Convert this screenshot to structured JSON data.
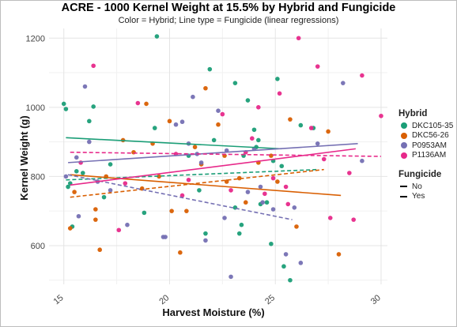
{
  "chart_data": {
    "type": "scatter",
    "title": "ACRE - 1000 Kernel Weight at 15.5% by Hybrid and Fungicide",
    "subtitle": "Color = Hybrid; Line type = Fungicide (linear regressions)",
    "xlabel": "Harvest Moisture (%)",
    "ylabel": "Kernel Weight (g)",
    "xlim": [
      14.3,
      30.3
    ],
    "ylim": [
      488,
      1228
    ],
    "xticks": [
      "15",
      "20",
      "25",
      "30"
    ],
    "yticks": [
      "600",
      "800",
      "1000",
      "1200"
    ],
    "grid": true,
    "legend_placement": "right",
    "hybrid_legend": {
      "title": "Hybrid",
      "items": [
        {
          "name": "DKC105-35",
          "color": "#1b9e77"
        },
        {
          "name": "DKC56-26",
          "color": "#d95f02"
        },
        {
          "name": "P0953AM",
          "color": "#7570b3"
        },
        {
          "name": "P1136AM",
          "color": "#e7298a"
        }
      ]
    },
    "fungicide_legend": {
      "title": "Fungicide",
      "items": [
        {
          "name": "No",
          "dash": "solid"
        },
        {
          "name": "Yes",
          "dash": "dashed"
        }
      ]
    },
    "series": [
      {
        "hybrid": "DKC105-35",
        "color": "#1b9e77",
        "points": [
          [
            15.0,
            1010
          ],
          [
            15.1,
            995
          ],
          [
            15.6,
            815
          ],
          [
            15.9,
            810
          ],
          [
            16.2,
            960
          ],
          [
            16.4,
            1002
          ],
          [
            15.3,
            780
          ],
          [
            15.2,
            770
          ],
          [
            15.4,
            655
          ],
          [
            16.9,
            740
          ],
          [
            17.2,
            835
          ],
          [
            19.3,
            940
          ],
          [
            19.4,
            1205
          ],
          [
            18.8,
            695
          ],
          [
            20.9,
            860
          ],
          [
            21.9,
            1110
          ],
          [
            22.1,
            905
          ],
          [
            21.4,
            760
          ],
          [
            23.1,
            1070
          ],
          [
            23.5,
            860
          ],
          [
            23.1,
            710
          ],
          [
            23.4,
            660
          ],
          [
            23.3,
            635
          ],
          [
            23.7,
            1020
          ],
          [
            24.0,
            935
          ],
          [
            24.2,
            905
          ],
          [
            24.1,
            885
          ],
          [
            24.6,
            725
          ],
          [
            24.3,
            720
          ],
          [
            24.9,
            845
          ],
          [
            25.1,
            1082
          ],
          [
            25.3,
            830
          ],
          [
            25.7,
            500
          ],
          [
            25.4,
            540
          ],
          [
            24.8,
            605
          ],
          [
            26.2,
            948
          ],
          [
            26.8,
            940
          ],
          [
            21.7,
            635
          ]
        ],
        "fit_no": [
          [
            15.1,
            912
          ],
          [
            25.3,
            880
          ]
        ],
        "fit_yes": [
          [
            15.1,
            790
          ],
          [
            27.0,
            820
          ]
        ]
      },
      {
        "hybrid": "DKC56-26",
        "color": "#d95f02",
        "points": [
          [
            15.5,
            755
          ],
          [
            15.3,
            650
          ],
          [
            16.5,
            705
          ],
          [
            16.5,
            675
          ],
          [
            16.7,
            588
          ],
          [
            17.0,
            800
          ],
          [
            17.8,
            905
          ],
          [
            18.3,
            870
          ],
          [
            19.2,
            895
          ],
          [
            18.7,
            765
          ],
          [
            19.5,
            800
          ],
          [
            20.0,
            960
          ],
          [
            20.8,
            700
          ],
          [
            20.5,
            580
          ],
          [
            21.7,
            1055
          ],
          [
            21.2,
            885
          ],
          [
            21.5,
            835
          ],
          [
            22.3,
            950
          ],
          [
            22.7,
            785
          ],
          [
            23.3,
            795
          ],
          [
            23.6,
            725
          ],
          [
            24.2,
            840
          ],
          [
            24.8,
            860
          ],
          [
            25.1,
            785
          ],
          [
            25.7,
            965
          ],
          [
            26.0,
            655
          ],
          [
            27.5,
            930
          ],
          [
            28.0,
            575
          ],
          [
            20.1,
            700
          ],
          [
            18.9,
            1010
          ],
          [
            22.6,
            860
          ]
        ],
        "fit_no": [
          [
            15.3,
            805
          ],
          [
            28.1,
            745
          ]
        ],
        "fit_yes": [
          [
            15.3,
            740
          ],
          [
            27.3,
            820
          ]
        ]
      },
      {
        "hybrid": "P0953AM",
        "color": "#7570b3",
        "points": [
          [
            15.1,
            800
          ],
          [
            15.6,
            855
          ],
          [
            16.0,
            1060
          ],
          [
            16.2,
            900
          ],
          [
            15.7,
            685
          ],
          [
            16.6,
            785
          ],
          [
            17.2,
            760
          ],
          [
            18.0,
            660
          ],
          [
            19.7,
            625
          ],
          [
            19.8,
            625
          ],
          [
            20.3,
            950
          ],
          [
            20.6,
            958
          ],
          [
            20.9,
            895
          ],
          [
            21.1,
            1030
          ],
          [
            21.5,
            840
          ],
          [
            21.7,
            615
          ],
          [
            22.3,
            990
          ],
          [
            22.7,
            875
          ],
          [
            22.6,
            680
          ],
          [
            22.9,
            510
          ],
          [
            23.7,
            755
          ],
          [
            24.0,
            880
          ],
          [
            24.3,
            770
          ],
          [
            24.4,
            725
          ],
          [
            24.9,
            705
          ],
          [
            25.5,
            575
          ],
          [
            25.9,
            710
          ],
          [
            26.2,
            550
          ],
          [
            27.0,
            895
          ],
          [
            28.2,
            1070
          ],
          [
            29.1,
            845
          ],
          [
            21.3,
            865
          ]
        ],
        "fit_no": [
          [
            15.2,
            840
          ],
          [
            28.9,
            895
          ]
        ],
        "fit_yes": [
          [
            15.2,
            805
          ],
          [
            25.8,
            675
          ]
        ]
      },
      {
        "hybrid": "P1136AM",
        "color": "#e7298a",
        "points": [
          [
            15.8,
            840
          ],
          [
            16.4,
            1120
          ],
          [
            17.9,
            780
          ],
          [
            17.6,
            645
          ],
          [
            18.5,
            1012
          ],
          [
            20.3,
            865
          ],
          [
            20.9,
            790
          ],
          [
            20.6,
            745
          ],
          [
            22.5,
            980
          ],
          [
            22.9,
            760
          ],
          [
            23.6,
            870
          ],
          [
            23.9,
            910
          ],
          [
            24.2,
            1000
          ],
          [
            24.5,
            750
          ],
          [
            25.2,
            1040
          ],
          [
            25.5,
            770
          ],
          [
            25.6,
            720
          ],
          [
            26.1,
            1200
          ],
          [
            27.0,
            1118
          ],
          [
            27.3,
            850
          ],
          [
            27.6,
            680
          ],
          [
            28.5,
            810
          ],
          [
            28.7,
            675
          ],
          [
            29.1,
            1092
          ],
          [
            30.0,
            975
          ],
          [
            24.9,
            795
          ],
          [
            26.7,
            940
          ]
        ],
        "fit_no": [
          [
            15.3,
            775
          ],
          [
            28.8,
            880
          ]
        ],
        "fit_yes": [
          [
            15.3,
            870
          ],
          [
            30.0,
            858
          ]
        ]
      }
    ]
  }
}
